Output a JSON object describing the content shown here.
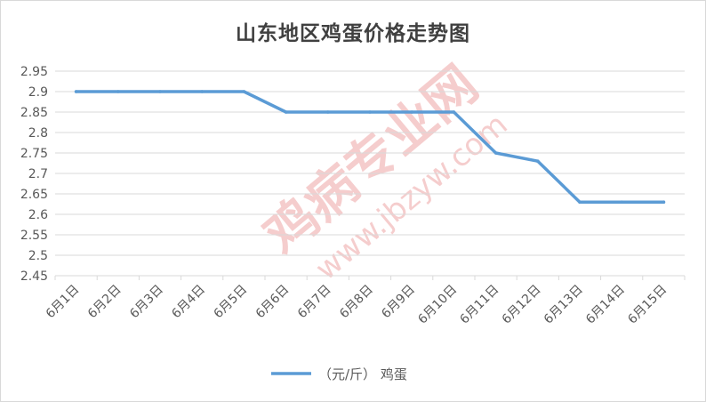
{
  "chart_data": {
    "type": "line",
    "title": "山东地区鸡蛋价格走势图",
    "categories": [
      "6月1日",
      "6月2日",
      "6月3日",
      "6月4日",
      "6月5日",
      "6月6日",
      "6月7日",
      "6月8日",
      "6月9日",
      "6月10日",
      "6月11日",
      "6月12日",
      "6月13日",
      "6月14日",
      "6月15日"
    ],
    "series": [
      {
        "name": "（元/斤） 鸡蛋",
        "values": [
          2.9,
          2.9,
          2.9,
          2.9,
          2.9,
          2.85,
          2.85,
          2.85,
          2.85,
          2.85,
          2.75,
          2.73,
          2.63,
          2.63,
          2.63
        ],
        "color": "#5b9bd5"
      }
    ],
    "yticks": [
      "2.95",
      "2.9",
      "2.85",
      "2.8",
      "2.75",
      "2.7",
      "2.65",
      "2.6",
      "2.55",
      "2.5",
      "2.45"
    ],
    "ylim": [
      2.45,
      2.95
    ],
    "grid": true,
    "legend": "bottom",
    "xlabel": "",
    "ylabel": ""
  },
  "watermark": {
    "text1": "鸡病专业网",
    "text2": "www.jbzyw.com",
    "color": "#e8a0a0"
  }
}
